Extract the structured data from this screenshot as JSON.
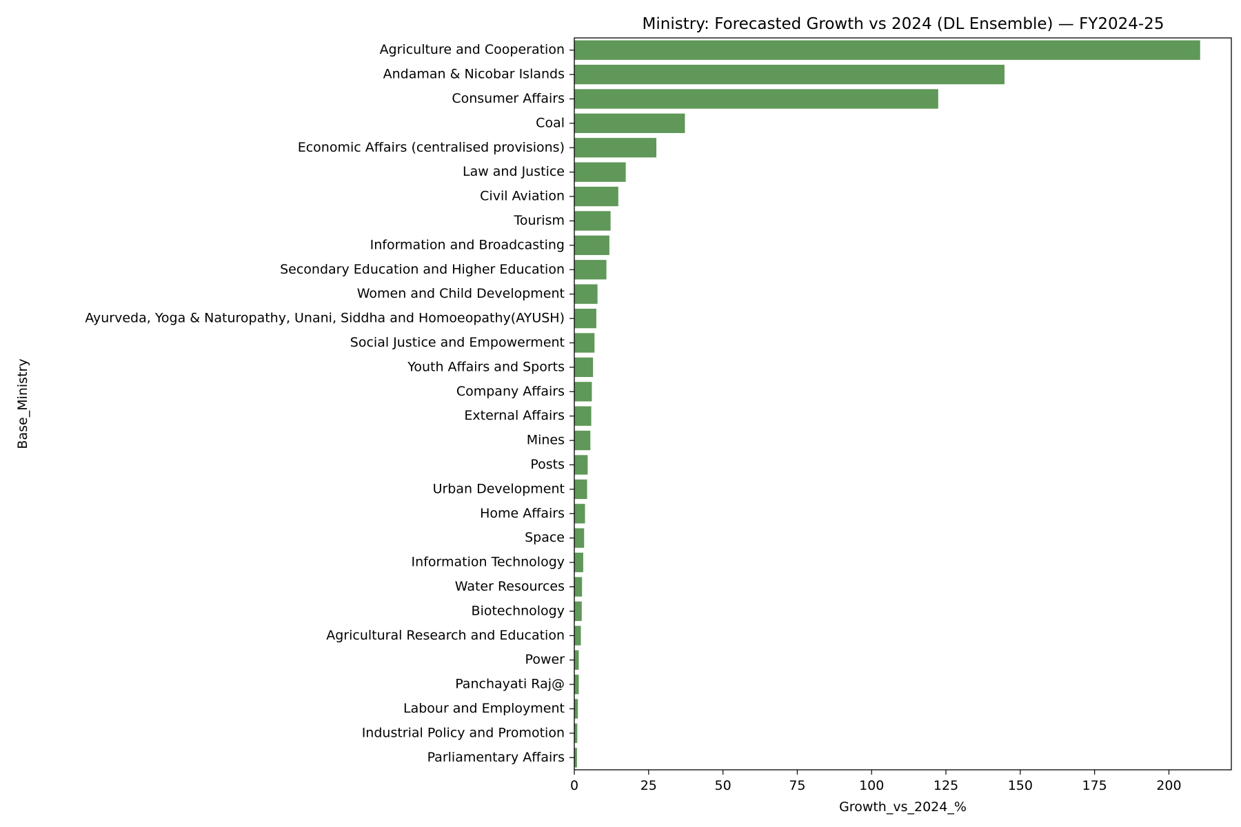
{
  "chart_data": {
    "type": "bar",
    "orientation": "horizontal",
    "title": "Ministry: Forecasted Growth vs 2024 (DL Ensemble) — FY2024-25",
    "xlabel": "Growth_vs_2024_%",
    "ylabel": "Base_Ministry",
    "xlim": [
      0,
      221
    ],
    "xticks": [
      0,
      25,
      50,
      75,
      100,
      125,
      150,
      175,
      200
    ],
    "grid": false,
    "bar_color": "#5f9858",
    "categories": [
      "Agriculture and Cooperation",
      "Andaman & Nicobar Islands",
      "Consumer Affairs",
      "Coal",
      "Economic Affairs (centralised provisions)",
      "Law and Justice",
      "Civil Aviation",
      "Tourism",
      "Information and Broadcasting",
      "Secondary Education and Higher Education",
      "Women and Child Development",
      "Ayurveda, Yoga & Naturopathy, Unani, Siddha and Homoeopathy(AYUSH)",
      "Social Justice and Empowerment",
      "Youth Affairs and Sports",
      "Company Affairs",
      "External Affairs",
      "Mines",
      "Posts",
      "Urban Development",
      "Home Affairs",
      "Space",
      "Information Technology",
      "Water Resources",
      "Biotechnology",
      "Agricultural Research and Education",
      "Power",
      "Panchayati Raj@",
      "Labour and Employment",
      "Industrial Policy and Promotion",
      "Parliamentary Affairs"
    ],
    "values": [
      210.5,
      144.7,
      122.4,
      37.2,
      27.6,
      17.3,
      14.8,
      12.2,
      11.8,
      10.8,
      7.8,
      7.4,
      6.8,
      6.3,
      5.9,
      5.7,
      5.4,
      4.5,
      4.3,
      3.6,
      3.3,
      3.0,
      2.6,
      2.5,
      2.2,
      1.5,
      1.5,
      1.2,
      1.0,
      0.9
    ]
  }
}
